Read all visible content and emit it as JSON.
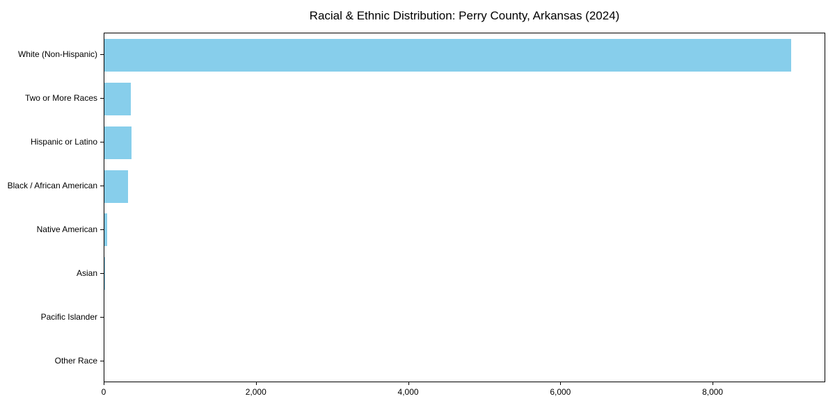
{
  "chart_data": {
    "type": "bar",
    "orientation": "horizontal",
    "title": "Racial & Ethnic Distribution: Perry County, Arkansas (2024)",
    "xlabel": "",
    "ylabel": "",
    "categories": [
      "White (Non-Hispanic)",
      "Two or More Races",
      "Hispanic or Latino",
      "Black / African American",
      "Native American",
      "Asian",
      "Pacific Islander",
      "Other Race"
    ],
    "values": [
      9040,
      350,
      356,
      314,
      35,
      8,
      0,
      0
    ],
    "bar_color": "#87CEEB",
    "xlim": [
      0,
      9480
    ],
    "x_ticks": [
      0,
      2000,
      4000,
      6000,
      8000
    ],
    "x_tick_labels": [
      "0",
      "2,000",
      "4,000",
      "6,000",
      "8,000"
    ],
    "grid": false,
    "legend": "none",
    "background_color": "#ffffff",
    "axis_color": "#000000"
  }
}
